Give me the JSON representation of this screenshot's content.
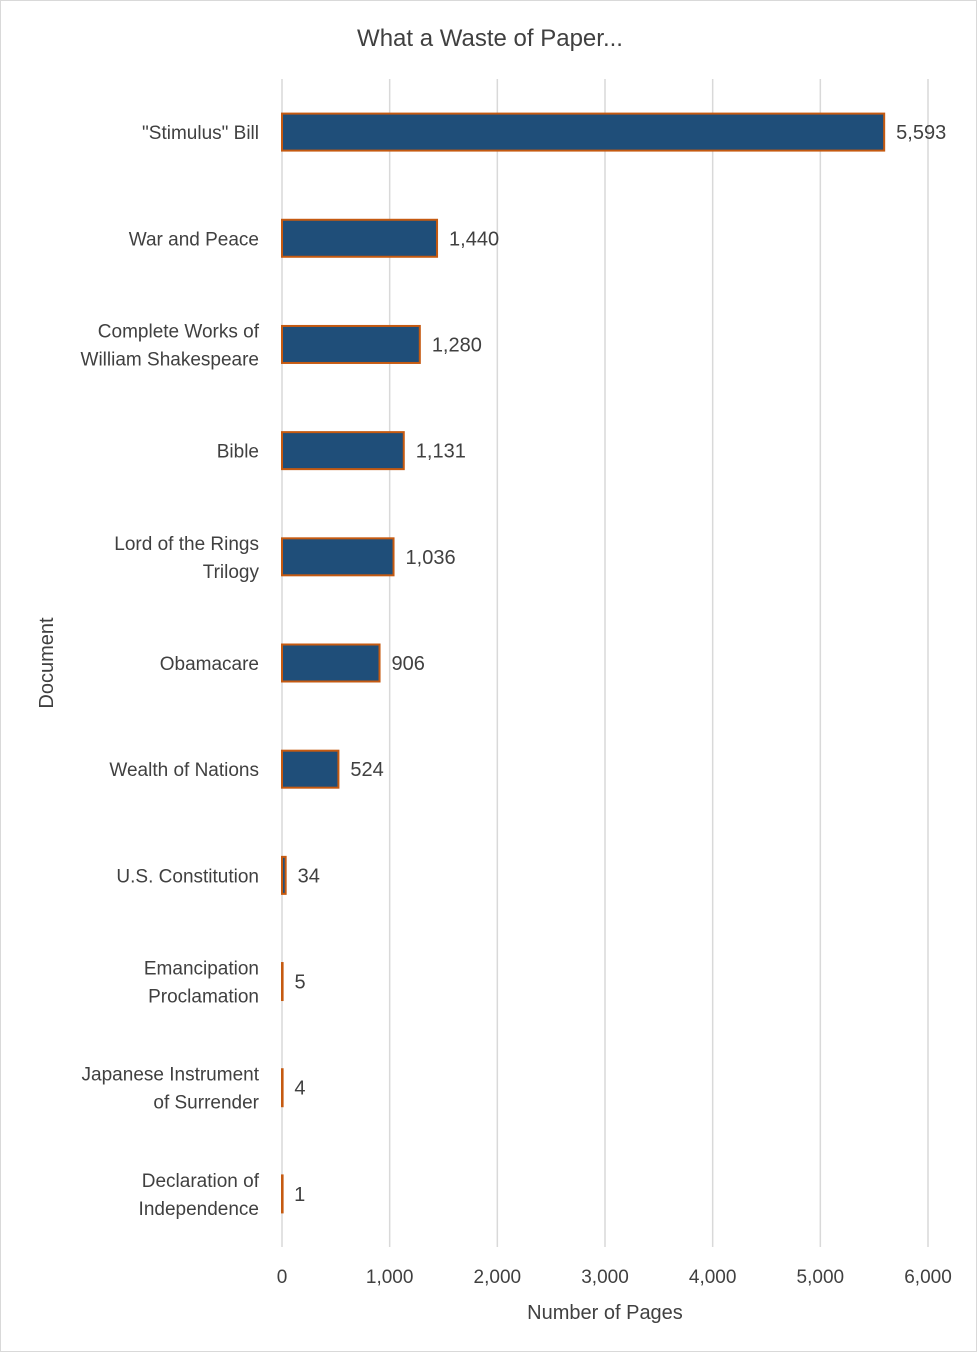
{
  "chart_data": {
    "type": "bar",
    "orientation": "horizontal",
    "title": "What a Waste of Paper...",
    "xlabel": "Number of Pages",
    "ylabel": "Document",
    "categories": [
      [
        "\"Stimulus\" Bill"
      ],
      [
        "War and Peace"
      ],
      [
        "Complete Works of",
        "William Shakespeare"
      ],
      [
        "Bible"
      ],
      [
        "Lord of the Rings",
        "Trilogy"
      ],
      [
        "Obamacare"
      ],
      [
        "Wealth of Nations"
      ],
      [
        "U.S. Constitution"
      ],
      [
        "Emancipation",
        "Proclamation"
      ],
      [
        "Japanese Instrument",
        "of Surrender"
      ],
      [
        "Declaration of",
        "Independence"
      ]
    ],
    "values": [
      5593,
      1440,
      1280,
      1131,
      1036,
      906,
      524,
      34,
      5,
      4,
      1
    ],
    "data_labels": [
      "5,593",
      "1,440",
      "1,280",
      "1,131",
      "1,036",
      "906",
      "524",
      "34",
      "5",
      "4",
      "1"
    ],
    "xlim": [
      0,
      6000
    ],
    "x_ticks": [
      0,
      1000,
      2000,
      3000,
      4000,
      5000,
      6000
    ],
    "x_tick_labels": [
      "0",
      "1,000",
      "2,000",
      "3,000",
      "4,000",
      "5,000",
      "6,000"
    ],
    "grid": "vertical",
    "legend": "none",
    "colors": {
      "bar_fill": "#1f4e79",
      "bar_edge": "#c55a11",
      "grid": "#d9d9d9",
      "text": "#404040"
    }
  }
}
